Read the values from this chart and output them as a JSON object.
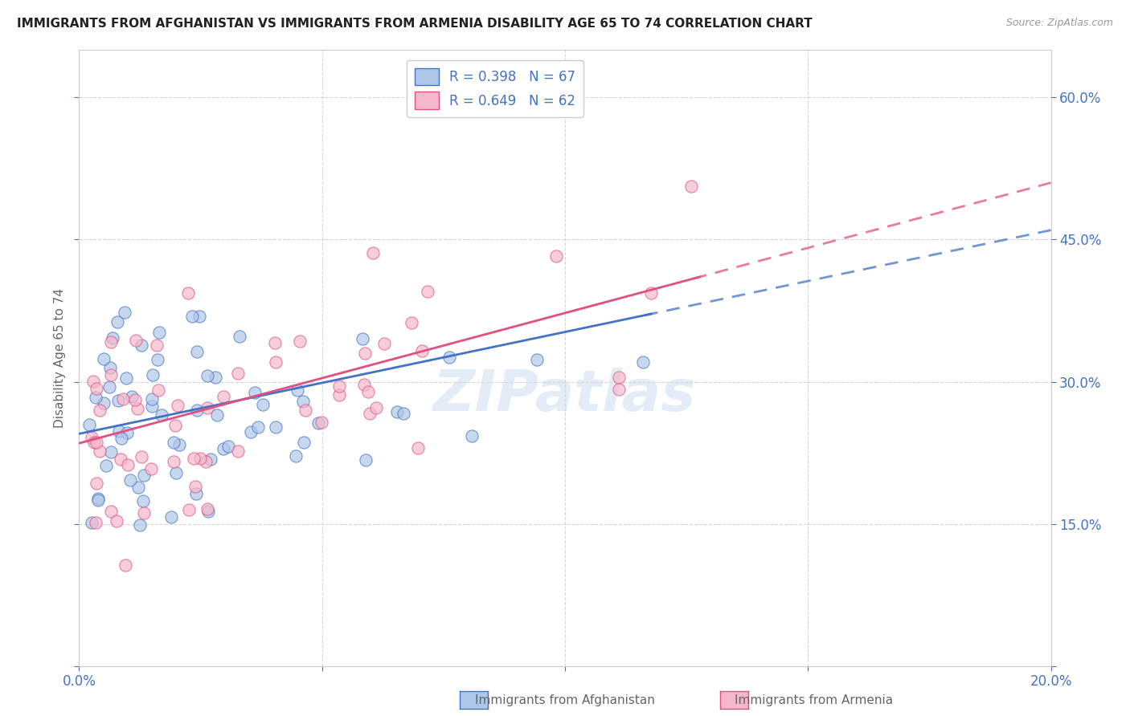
{
  "title": "IMMIGRANTS FROM AFGHANISTAN VS IMMIGRANTS FROM ARMENIA DISABILITY AGE 65 TO 74 CORRELATION CHART",
  "source": "Source: ZipAtlas.com",
  "ylabel": "Disability Age 65 to 74",
  "xlim": [
    0.0,
    0.2
  ],
  "ylim": [
    0.0,
    0.65
  ],
  "xticks": [
    0.0,
    0.05,
    0.1,
    0.15,
    0.2
  ],
  "xticklabels": [
    "0.0%",
    "",
    "",
    "",
    "20.0%"
  ],
  "yticks": [
    0.0,
    0.15,
    0.3,
    0.45,
    0.6
  ],
  "yticklabels": [
    "",
    "15.0%",
    "30.0%",
    "45.0%",
    "60.0%"
  ],
  "afghanistan_color": "#aec6e8",
  "armenia_color": "#f5b8cb",
  "afghanistan_R": 0.398,
  "afghanistan_N": 67,
  "armenia_R": 0.649,
  "armenia_N": 62,
  "afghanistan_line_color": "#4472c4",
  "armenia_line_color": "#e05080",
  "grid_color": "#cccccc",
  "background_color": "#ffffff",
  "watermark": "ZIPatlas",
  "tick_color": "#4472c4",
  "title_color": "#222222",
  "source_color": "#999999",
  "ylabel_color": "#666666"
}
